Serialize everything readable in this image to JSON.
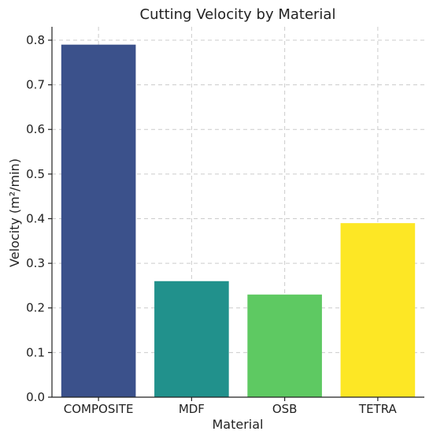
{
  "chart_data": {
    "type": "bar",
    "title": "Cutting Velocity by Material",
    "xlabel": "Material",
    "ylabel": "Velocity (m²/min)",
    "categories": [
      "COMPOSITE",
      "MDF",
      "OSB",
      "TETRA"
    ],
    "values": [
      0.79,
      0.26,
      0.23,
      0.39
    ],
    "colors": [
      "#3b518b",
      "#21918c",
      "#5ec962",
      "#fde725"
    ],
    "ylim": [
      0,
      0.83
    ],
    "yticks": [
      0.0,
      0.1,
      0.2,
      0.3,
      0.4,
      0.5,
      0.6,
      0.7,
      0.8
    ],
    "ytick_labels": [
      "0.0",
      "0.1",
      "0.2",
      "0.3",
      "0.4",
      "0.5",
      "0.6",
      "0.7",
      "0.8"
    ],
    "grid": true
  }
}
